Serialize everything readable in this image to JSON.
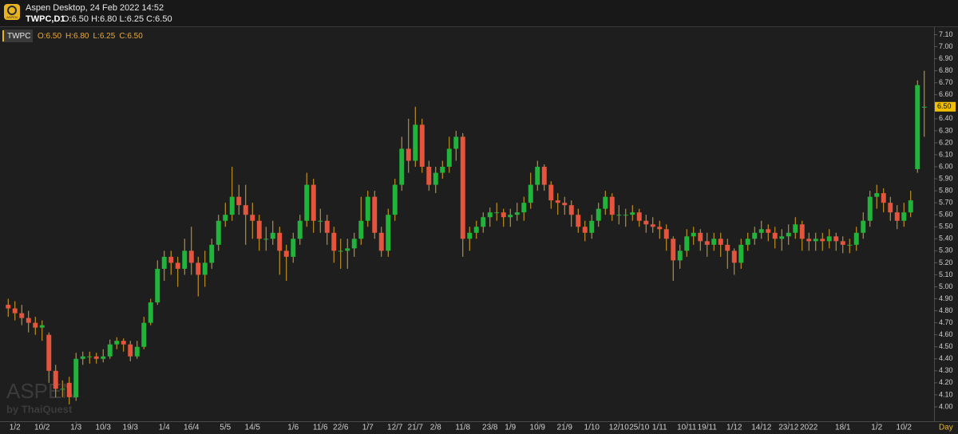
{
  "header": {
    "app_title": "Aspen Desktop, 24 Feb 2022 14:52",
    "symbol": "TWPC,D1",
    "ohlc": "O:6.50 H:6.80 L:6.25 C:6.50",
    "logo": "ASPEN"
  },
  "legend": {
    "symbol": "TWPC",
    "values": [
      "O:6.50",
      "H:6.80",
      "L:6.25",
      "C:6.50"
    ]
  },
  "watermark": {
    "brand": "ASPEN",
    "by": "by ThaiQuest"
  },
  "chart_data": {
    "type": "candlestick",
    "up_color": "#21b43a",
    "down_color": "#e5553d",
    "wick_color": "#d9a52a",
    "x_label": "Day",
    "ylim": [
      3.88,
      7.17
    ],
    "yticks": [
      {
        "value": 4,
        "label": "4.00"
      },
      {
        "value": 4.1,
        "label": "4.10"
      },
      {
        "value": 4.2,
        "label": "4.20"
      },
      {
        "value": 4.3,
        "label": "4.30"
      },
      {
        "value": 4.4,
        "label": "4.40"
      },
      {
        "value": 4.5,
        "label": "4.50"
      },
      {
        "value": 4.6,
        "label": "4.60"
      },
      {
        "value": 4.7,
        "label": "4.70"
      },
      {
        "value": 4.8,
        "label": "4.80"
      },
      {
        "value": 4.9,
        "label": "4.90"
      },
      {
        "value": 5,
        "label": "5.00"
      },
      {
        "value": 5.1,
        "label": "5.10"
      },
      {
        "value": 5.2,
        "label": "5.20"
      },
      {
        "value": 5.3,
        "label": "5.30"
      },
      {
        "value": 5.4,
        "label": "5.40"
      },
      {
        "value": 5.5,
        "label": "5.50"
      },
      {
        "value": 5.6,
        "label": "5.60"
      },
      {
        "value": 5.7,
        "label": "5.70"
      },
      {
        "value": 5.8,
        "label": "5.80"
      },
      {
        "value": 5.9,
        "label": "5.90"
      },
      {
        "value": 6,
        "label": "6.00"
      },
      {
        "value": 6.1,
        "label": "6.10"
      },
      {
        "value": 6.2,
        "label": "6.20"
      },
      {
        "value": 6.3,
        "label": "6.30"
      },
      {
        "value": 6.4,
        "label": "6.40"
      },
      {
        "value": 6.5,
        "label": "6.50"
      },
      {
        "value": 6.6,
        "label": "6.60"
      },
      {
        "value": 6.7,
        "label": "6.70"
      },
      {
        "value": 6.8,
        "label": "6.80"
      },
      {
        "value": 6.9,
        "label": "6.90"
      },
      {
        "value": 7,
        "label": "7.00"
      },
      {
        "value": 7.1,
        "label": "7.10"
      }
    ],
    "last_price": {
      "value": 6.5,
      "label": "6.50"
    },
    "categories": [
      null,
      "1/2",
      null,
      null,
      null,
      "10/2",
      null,
      null,
      null,
      null,
      "1/3",
      null,
      null,
      null,
      "10/3",
      null,
      null,
      null,
      "19/3",
      null,
      null,
      null,
      null,
      "1/4",
      null,
      null,
      null,
      "16/4",
      null,
      null,
      null,
      null,
      "5/5",
      null,
      null,
      null,
      "14/5",
      null,
      null,
      null,
      null,
      null,
      "1/6",
      null,
      null,
      null,
      "11/6",
      null,
      null,
      "22/6",
      null,
      null,
      null,
      "1/7",
      null,
      null,
      null,
      "12/7",
      null,
      null,
      "21/7",
      null,
      null,
      "2/8",
      null,
      null,
      null,
      "11/8",
      null,
      null,
      null,
      "23/8",
      null,
      null,
      "1/9",
      null,
      null,
      null,
      "10/9",
      null,
      null,
      null,
      "21/9",
      null,
      null,
      null,
      "1/10",
      null,
      null,
      null,
      "12/10",
      null,
      null,
      "25/10",
      null,
      null,
      "1/11",
      null,
      null,
      null,
      "10/11",
      null,
      null,
      "19/11",
      null,
      null,
      null,
      "1/12",
      null,
      null,
      null,
      "14/12",
      null,
      null,
      null,
      "23/12",
      null,
      null,
      "2022",
      null,
      null,
      null,
      null,
      "18/1",
      null,
      null,
      null,
      null,
      "1/2",
      null,
      null,
      null,
      "10/2",
      null,
      null,
      null
    ],
    "ohlc": [
      [
        4.85,
        4.9,
        4.75,
        4.82
      ],
      [
        4.82,
        4.88,
        4.72,
        4.78
      ],
      [
        4.78,
        4.85,
        4.68,
        4.74
      ],
      [
        4.74,
        4.8,
        4.62,
        4.7
      ],
      [
        4.7,
        4.75,
        4.6,
        4.66
      ],
      [
        4.66,
        4.72,
        4.55,
        4.68
      ],
      [
        4.6,
        4.62,
        4.2,
        4.3
      ],
      [
        4.3,
        4.35,
        4.08,
        4.15
      ],
      [
        4.15,
        4.22,
        4.08,
        4.15
      ],
      [
        4.2,
        4.25,
        4.02,
        4.08
      ],
      [
        4.08,
        4.45,
        4.05,
        4.4
      ],
      [
        4.4,
        4.46,
        4.35,
        4.42
      ],
      [
        4.42,
        4.46,
        4.36,
        4.42
      ],
      [
        4.42,
        4.45,
        4.36,
        4.4
      ],
      [
        4.4,
        4.48,
        4.37,
        4.42
      ],
      [
        4.42,
        4.56,
        4.4,
        4.52
      ],
      [
        4.52,
        4.58,
        4.48,
        4.55
      ],
      [
        4.55,
        4.57,
        4.46,
        4.52
      ],
      [
        4.52,
        4.55,
        4.38,
        4.42
      ],
      [
        4.42,
        4.55,
        4.4,
        4.5
      ],
      [
        4.5,
        4.75,
        4.48,
        4.7
      ],
      [
        4.7,
        4.9,
        4.68,
        4.87
      ],
      [
        4.87,
        5.22,
        4.85,
        5.15
      ],
      [
        5.15,
        5.3,
        5.05,
        5.25
      ],
      [
        5.25,
        5.3,
        5.1,
        5.2
      ],
      [
        5.2,
        5.25,
        5.0,
        5.15
      ],
      [
        5.15,
        5.4,
        5.1,
        5.3
      ],
      [
        5.3,
        5.5,
        5.1,
        5.2
      ],
      [
        5.2,
        5.25,
        4.92,
        5.1
      ],
      [
        5.1,
        5.3,
        5.0,
        5.2
      ],
      [
        5.2,
        5.4,
        5.15,
        5.35
      ],
      [
        5.35,
        5.6,
        5.3,
        5.55
      ],
      [
        5.55,
        5.7,
        5.5,
        5.6
      ],
      [
        5.6,
        6.0,
        5.55,
        5.75
      ],
      [
        5.75,
        5.85,
        5.6,
        5.68
      ],
      [
        5.68,
        5.85,
        5.35,
        5.6
      ],
      [
        5.6,
        5.7,
        5.4,
        5.55
      ],
      [
        5.55,
        5.6,
        5.3,
        5.4
      ],
      [
        5.4,
        5.5,
        5.3,
        5.4
      ],
      [
        5.4,
        5.55,
        5.35,
        5.45
      ],
      [
        5.45,
        5.5,
        5.1,
        5.3
      ],
      [
        5.3,
        5.35,
        5.05,
        5.25
      ],
      [
        5.25,
        5.45,
        5.2,
        5.4
      ],
      [
        5.4,
        5.6,
        5.35,
        5.55
      ],
      [
        5.55,
        5.95,
        5.5,
        5.85
      ],
      [
        5.85,
        5.9,
        5.45,
        5.55
      ],
      [
        5.55,
        5.65,
        5.45,
        5.55
      ],
      [
        5.55,
        5.6,
        5.35,
        5.45
      ],
      [
        5.45,
        5.5,
        5.2,
        5.3
      ],
      [
        5.3,
        5.4,
        5.15,
        5.3
      ],
      [
        5.3,
        5.4,
        5.15,
        5.32
      ],
      [
        5.32,
        5.45,
        5.25,
        5.4
      ],
      [
        5.4,
        5.75,
        5.35,
        5.55
      ],
      [
        5.55,
        5.8,
        5.5,
        5.75
      ],
      [
        5.75,
        5.8,
        5.4,
        5.45
      ],
      [
        5.45,
        5.5,
        5.25,
        5.3
      ],
      [
        5.3,
        5.65,
        5.25,
        5.6
      ],
      [
        5.6,
        5.9,
        5.55,
        5.85
      ],
      [
        5.85,
        6.25,
        5.8,
        6.15
      ],
      [
        6.15,
        6.4,
        5.95,
        6.05
      ],
      [
        6.05,
        6.5,
        6.0,
        6.35
      ],
      [
        6.35,
        6.4,
        5.95,
        6.0
      ],
      [
        6.0,
        6.05,
        5.8,
        5.85
      ],
      [
        5.85,
        6.0,
        5.78,
        5.95
      ],
      [
        5.95,
        6.05,
        5.9,
        6.0
      ],
      [
        6.0,
        6.25,
        5.95,
        6.15
      ],
      [
        6.15,
        6.3,
        6.05,
        6.25
      ],
      [
        6.25,
        6.28,
        5.25,
        5.4
      ],
      [
        5.4,
        5.5,
        5.3,
        5.45
      ],
      [
        5.45,
        5.55,
        5.4,
        5.5
      ],
      [
        5.5,
        5.62,
        5.45,
        5.58
      ],
      [
        5.58,
        5.66,
        5.5,
        5.62
      ],
      [
        5.62,
        5.7,
        5.55,
        5.62
      ],
      [
        5.62,
        5.65,
        5.5,
        5.58
      ],
      [
        5.58,
        5.65,
        5.5,
        5.6
      ],
      [
        5.6,
        5.7,
        5.55,
        5.62
      ],
      [
        5.62,
        5.75,
        5.55,
        5.7
      ],
      [
        5.7,
        5.95,
        5.65,
        5.85
      ],
      [
        5.85,
        6.05,
        5.8,
        6.0
      ],
      [
        6.0,
        6.02,
        5.8,
        5.85
      ],
      [
        5.85,
        5.88,
        5.65,
        5.72
      ],
      [
        5.72,
        5.78,
        5.6,
        5.7
      ],
      [
        5.7,
        5.75,
        5.6,
        5.68
      ],
      [
        5.68,
        5.72,
        5.5,
        5.6
      ],
      [
        5.6,
        5.65,
        5.45,
        5.5
      ],
      [
        5.5,
        5.55,
        5.38,
        5.45
      ],
      [
        5.45,
        5.6,
        5.4,
        5.55
      ],
      [
        5.55,
        5.7,
        5.5,
        5.65
      ],
      [
        5.65,
        5.8,
        5.6,
        5.75
      ],
      [
        5.75,
        5.78,
        5.55,
        5.6
      ],
      [
        5.6,
        5.68,
        5.52,
        5.6
      ],
      [
        5.6,
        5.65,
        5.5,
        5.6
      ],
      [
        5.6,
        5.68,
        5.55,
        5.62
      ],
      [
        5.62,
        5.65,
        5.5,
        5.55
      ],
      [
        5.55,
        5.6,
        5.45,
        5.52
      ],
      [
        5.52,
        5.58,
        5.45,
        5.5
      ],
      [
        5.5,
        5.55,
        5.4,
        5.48
      ],
      [
        5.48,
        5.52,
        5.3,
        5.4
      ],
      [
        5.4,
        5.42,
        5.05,
        5.22
      ],
      [
        5.22,
        5.35,
        5.15,
        5.3
      ],
      [
        5.3,
        5.48,
        5.25,
        5.42
      ],
      [
        5.42,
        5.5,
        5.35,
        5.45
      ],
      [
        5.45,
        5.48,
        5.3,
        5.38
      ],
      [
        5.38,
        5.45,
        5.25,
        5.35
      ],
      [
        5.35,
        5.45,
        5.3,
        5.4
      ],
      [
        5.4,
        5.45,
        5.25,
        5.35
      ],
      [
        5.35,
        5.4,
        5.15,
        5.3
      ],
      [
        5.3,
        5.32,
        5.1,
        5.2
      ],
      [
        5.2,
        5.4,
        5.15,
        5.35
      ],
      [
        5.35,
        5.45,
        5.3,
        5.4
      ],
      [
        5.4,
        5.5,
        5.35,
        5.45
      ],
      [
        5.45,
        5.55,
        5.4,
        5.48
      ],
      [
        5.48,
        5.52,
        5.38,
        5.45
      ],
      [
        5.45,
        5.5,
        5.32,
        5.4
      ],
      [
        5.4,
        5.48,
        5.3,
        5.42
      ],
      [
        5.42,
        5.52,
        5.35,
        5.45
      ],
      [
        5.45,
        5.58,
        5.4,
        5.52
      ],
      [
        5.52,
        5.55,
        5.3,
        5.4
      ],
      [
        5.4,
        5.45,
        5.3,
        5.38
      ],
      [
        5.38,
        5.45,
        5.3,
        5.4
      ],
      [
        5.4,
        5.45,
        5.3,
        5.38
      ],
      [
        5.38,
        5.48,
        5.32,
        5.42
      ],
      [
        5.42,
        5.45,
        5.3,
        5.38
      ],
      [
        5.38,
        5.42,
        5.28,
        5.35
      ],
      [
        5.35,
        5.4,
        5.28,
        5.35
      ],
      [
        5.35,
        5.5,
        5.3,
        5.45
      ],
      [
        5.45,
        5.62,
        5.4,
        5.55
      ],
      [
        5.55,
        5.8,
        5.5,
        5.75
      ],
      [
        5.75,
        5.85,
        5.65,
        5.78
      ],
      [
        5.78,
        5.82,
        5.62,
        5.7
      ],
      [
        5.7,
        5.75,
        5.55,
        5.62
      ],
      [
        5.62,
        5.68,
        5.48,
        5.55
      ],
      [
        5.55,
        5.7,
        5.5,
        5.62
      ],
      [
        5.62,
        5.8,
        5.58,
        5.72
      ],
      [
        5.98,
        6.72,
        5.95,
        6.68
      ],
      [
        6.5,
        6.8,
        6.25,
        6.5
      ]
    ]
  }
}
